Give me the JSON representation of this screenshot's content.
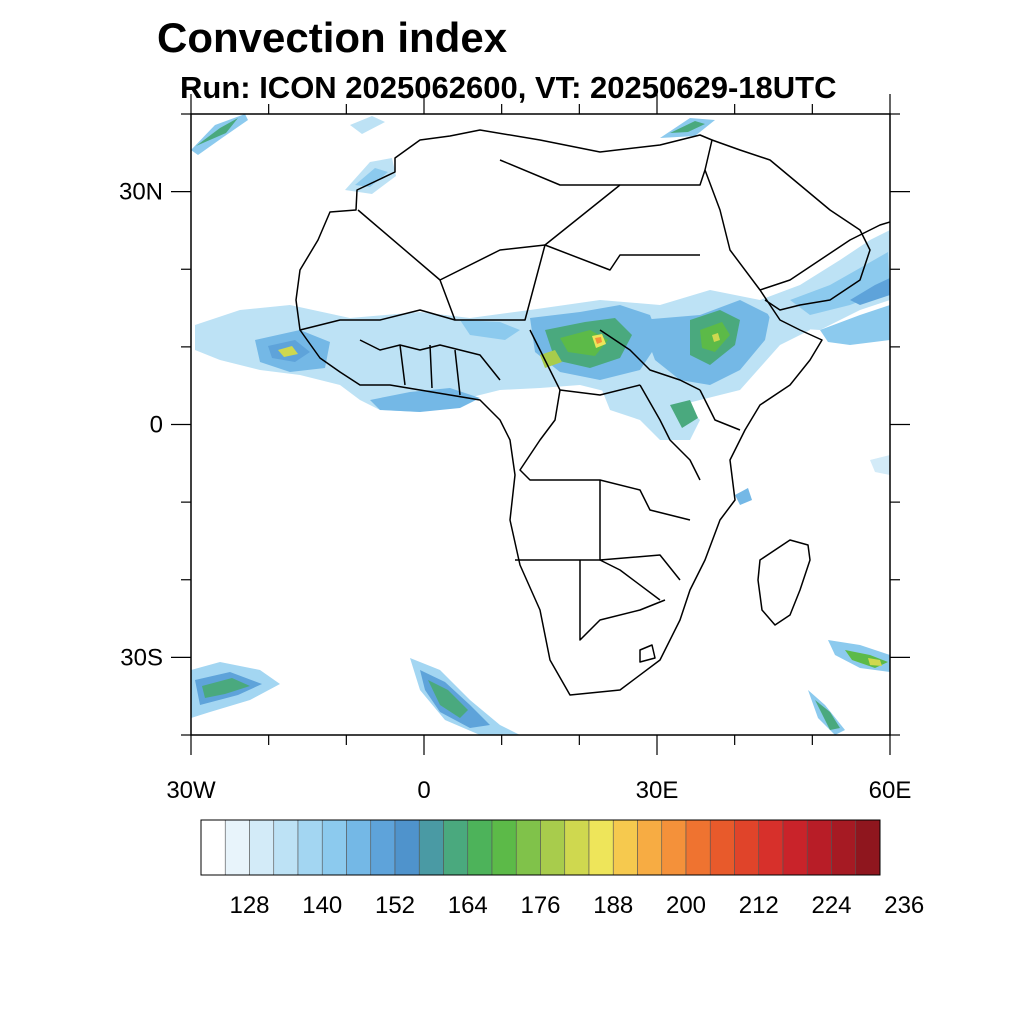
{
  "title": "Convection index",
  "subtitle": "Run: ICON 2025062600,  VT: 20250629-18UTC",
  "map": {
    "lon_range": [
      -30,
      60
    ],
    "lat_range": [
      -40,
      40
    ],
    "lat_ticks": [
      {
        "value": 30,
        "label": "30N"
      },
      {
        "value": 0,
        "label": "0"
      },
      {
        "value": -30,
        "label": "30S"
      }
    ],
    "lon_ticks": [
      {
        "value": -30,
        "label": "30W"
      },
      {
        "value": 0,
        "label": "0"
      },
      {
        "value": 30,
        "label": "30E"
      },
      {
        "value": 60,
        "label": "60E"
      }
    ]
  },
  "colorbar": {
    "colors": [
      "#ffffff",
      "#e8f4fb",
      "#d3ebf8",
      "#bde2f5",
      "#a3d6f2",
      "#8ccaee",
      "#74b8e6",
      "#5ea3da",
      "#4f93cc",
      "#4a9aa4",
      "#4aa97e",
      "#4db35a",
      "#5cba48",
      "#80c24a",
      "#a8cc4c",
      "#cfd84f",
      "#eee55a",
      "#f6c94e",
      "#f7ac43",
      "#f4913a",
      "#ef7330",
      "#e85a2b",
      "#e0442a",
      "#d7302b",
      "#c9232a",
      "#b81d27",
      "#a61a23",
      "#8f161e"
    ],
    "labels": [
      "128",
      "140",
      "152",
      "164",
      "176",
      "188",
      "200",
      "212",
      "224",
      "236"
    ]
  }
}
